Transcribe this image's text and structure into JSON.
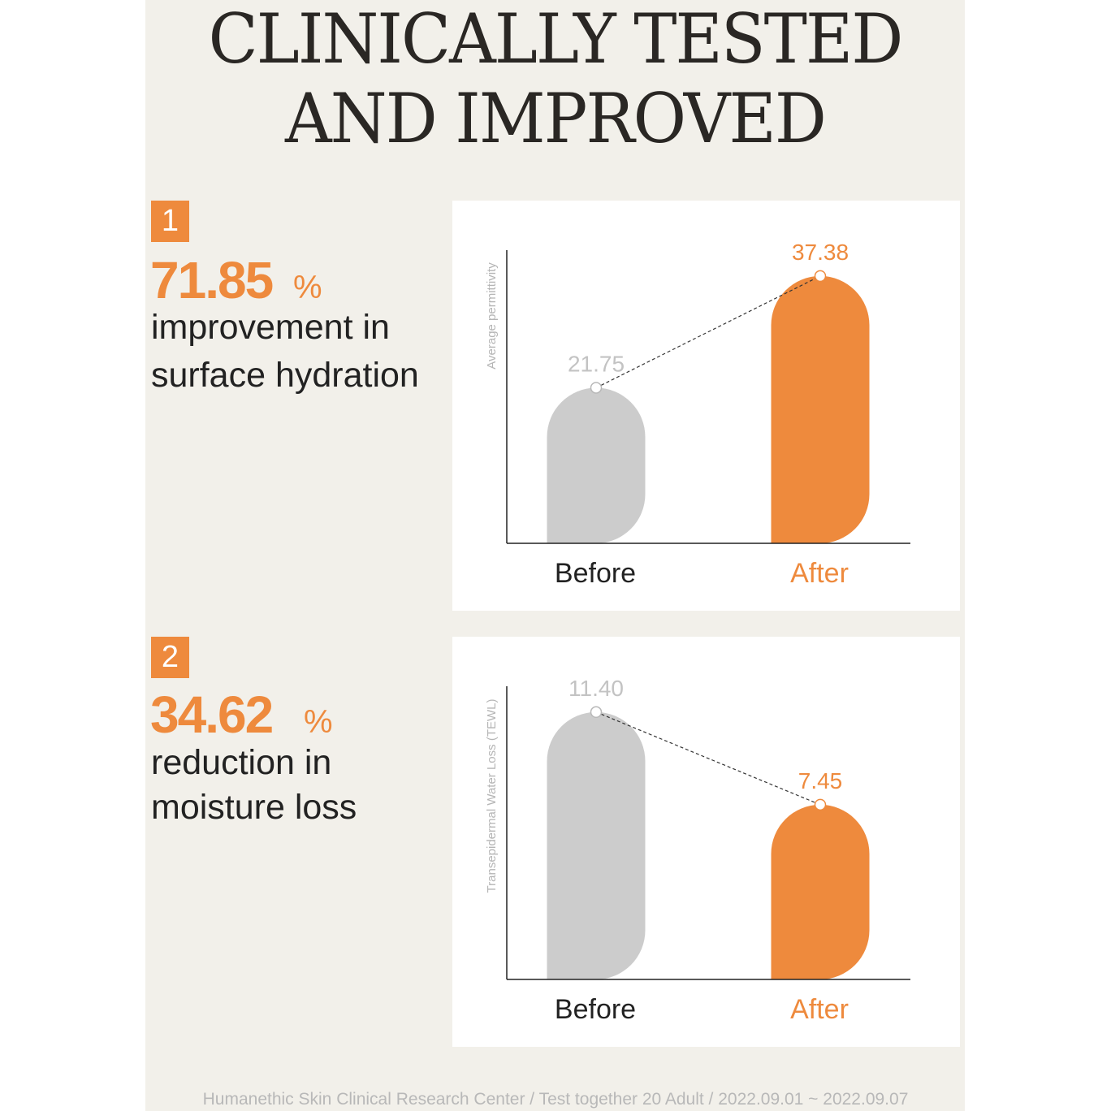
{
  "title": {
    "line1": "CLINICALLY TESTED",
    "line2": "AND IMPROVED"
  },
  "colors": {
    "accent": "#ee8a3d",
    "before_bar": "#cccccc",
    "before_label": "#c3c3c3",
    "background": "#f2f0ea"
  },
  "sections": [
    {
      "badge": "1",
      "percent": "71.85",
      "percent_sign": "%",
      "desc_line1": "improvement in",
      "desc_line2": "surface hydration"
    },
    {
      "badge": "2",
      "percent": "34.62",
      "percent_sign": "%",
      "desc_line1": "reduction in",
      "desc_line2": "moisture loss"
    }
  ],
  "chart_data": [
    {
      "type": "bar",
      "title": "",
      "ylabel": "Average permittivity",
      "xlabel": "",
      "categories": [
        "Before",
        "After"
      ],
      "values": [
        21.75,
        37.38
      ],
      "value_labels": [
        "21.75",
        "37.38"
      ],
      "ylim": [
        0,
        41
      ],
      "grid": false
    },
    {
      "type": "bar",
      "title": "",
      "ylabel": "Transepidermal Water Loss (TEWL)",
      "xlabel": "",
      "categories": [
        "Before",
        "After"
      ],
      "values": [
        11.4,
        7.45
      ],
      "value_labels": [
        "11.40",
        "7.45"
      ],
      "ylim": [
        0,
        12.5
      ],
      "grid": false
    }
  ],
  "footnote": "Humanethic Skin Clinical Research Center / Test together 20 Adult / 2022.09.01 ~ 2022.09.07"
}
